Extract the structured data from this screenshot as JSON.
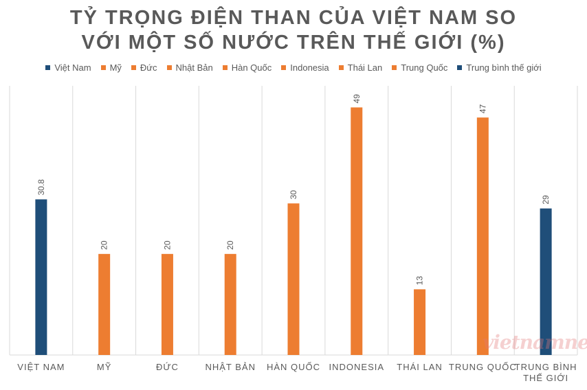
{
  "title_line1": "TỶ TRỌNG ĐIỆN THAN CỦA VIỆT NAM SO",
  "title_line2": "VỚI MỘT SỐ NƯỚC TRÊN THẾ GIỚI (%)",
  "watermark": "vietnamnet",
  "colors": {
    "vietnam": "#1f4e79",
    "other": "#ed7d31"
  },
  "chart_data": {
    "type": "bar",
    "title": "TỶ TRỌNG ĐIỆN THAN CỦA VIỆT NAM SO VỚI MỘT SỐ NƯỚC TRÊN THẾ GIỚI (%)",
    "legend_position": "top",
    "grid": "vertical separators",
    "ylim": [
      0,
      53
    ],
    "series": [
      {
        "name": "Việt Nam",
        "color": "#1f4e79",
        "category": "VIỆT NAM",
        "value": 30.8,
        "label": "30.8"
      },
      {
        "name": "Mỹ",
        "color": "#ed7d31",
        "category": "MỸ",
        "value": 20,
        "label": "20"
      },
      {
        "name": "Đức",
        "color": "#ed7d31",
        "category": "ĐỨC",
        "value": 20,
        "label": "20"
      },
      {
        "name": "Nhật Bản",
        "color": "#ed7d31",
        "category": "NHẬT BẢN",
        "value": 20,
        "label": "20"
      },
      {
        "name": "Hàn Quốc",
        "color": "#ed7d31",
        "category": "HÀN QUỐC",
        "value": 30,
        "label": "30"
      },
      {
        "name": "Indonesia",
        "color": "#ed7d31",
        "category": "INDONESIA",
        "value": 49,
        "label": "49"
      },
      {
        "name": "Thái Lan",
        "color": "#ed7d31",
        "category": "THÁI LAN",
        "value": 13,
        "label": "13"
      },
      {
        "name": "Trung Quốc",
        "color": "#ed7d31",
        "category": "TRUNG QUỐC",
        "value": 47,
        "label": "47"
      },
      {
        "name": "Trung bình thế giới",
        "color": "#1f4e79",
        "category": "TRUNG BÌNH THẾ GIỚI",
        "value": 29,
        "label": "29"
      }
    ]
  }
}
